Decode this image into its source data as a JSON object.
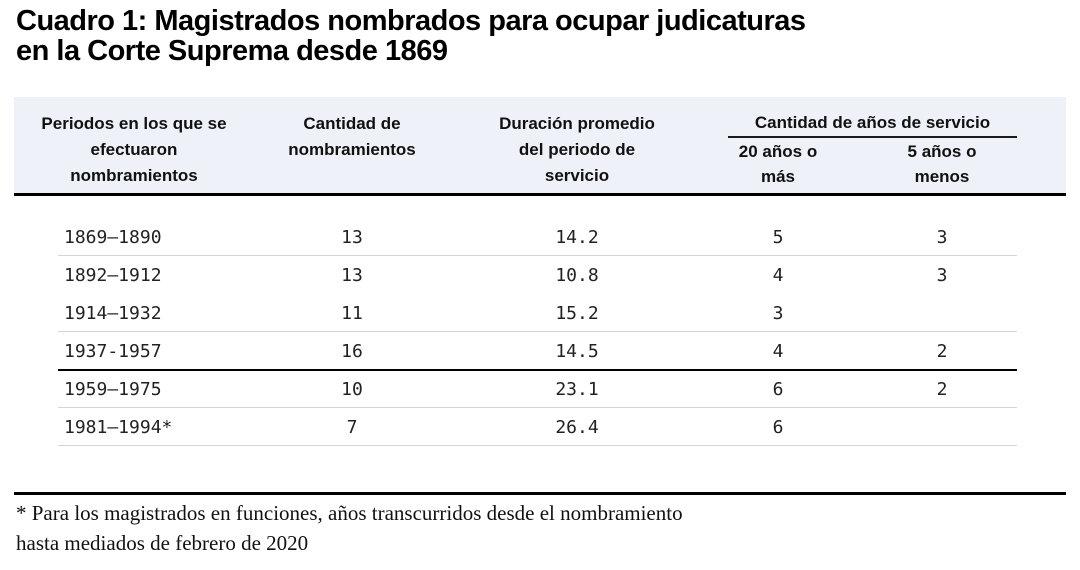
{
  "title": {
    "line1": "Cuadro 1: Magistrados nombrados para ocupar judicaturas",
    "line2": "en la Corte Suprema desde 1869"
  },
  "table": {
    "columns": {
      "periods": "Periodos en los que se efectuaron nombramientos",
      "appointments": "Cantidad de nombramientos",
      "avg_duration": "Duración promedio del periodo de servicio",
      "service_group": "Cantidad de años de servicio",
      "twenty_plus": "20 años o más",
      "five_less": "5 años o menos"
    },
    "rows": [
      {
        "period": "1869–1890",
        "appointments": "13",
        "avg": "14.2",
        "y20": "5",
        "y5": "3",
        "divider": "thin"
      },
      {
        "period": "1892–1912",
        "appointments": "13",
        "avg": "10.8",
        "y20": "4",
        "y5": "3",
        "divider": "none"
      },
      {
        "period": "1914–1932",
        "appointments": "11",
        "avg": "15.2",
        "y20": "3",
        "y5": "",
        "divider": "thin"
      },
      {
        "period": "1937-1957",
        "appointments": "16",
        "avg": "14.5",
        "y20": "4",
        "y5": "2",
        "divider": "thick"
      },
      {
        "period": "1959–1975",
        "appointments": "10",
        "avg": "23.1",
        "y20": "6",
        "y5": "2",
        "divider": "thin"
      },
      {
        "period": "1981–1994*",
        "appointments": "7",
        "avg": "26.4",
        "y20": "6",
        "y5": "",
        "divider": "thin"
      }
    ]
  },
  "footnote": {
    "line1": "* Para los magistrados en funciones, años transcurridos desde el nombramiento",
    "line2": "hasta mediados de febrero de 2020"
  },
  "colors": {
    "header_bg": "#eef1f7",
    "rule_heavy": "#000000",
    "rule_thin": "#d5d5d5",
    "text": "#1a1a1a"
  },
  "chart_data": {
    "type": "table",
    "title": "Cuadro 1: Magistrados nombrados para ocupar judicaturas en la Corte Suprema desde 1869",
    "columns": [
      "Periodos en los que se efectuaron nombramientos",
      "Cantidad de nombramientos",
      "Duración promedio del periodo de servicio",
      "Cantidad de años de servicio — 20 años o más",
      "Cantidad de años de servicio — 5 años o menos"
    ],
    "rows": [
      [
        "1869–1890",
        13,
        14.2,
        5,
        3
      ],
      [
        "1892–1912",
        13,
        10.8,
        4,
        3
      ],
      [
        "1914–1932",
        11,
        15.2,
        3,
        null
      ],
      [
        "1937-1957",
        16,
        14.5,
        4,
        2
      ],
      [
        "1959–1975",
        10,
        23.1,
        6,
        2
      ],
      [
        "1981–1994*",
        7,
        26.4,
        6,
        null
      ]
    ],
    "footnote": "* Para los magistrados en funciones, años transcurridos desde el nombramiento hasta mediados de febrero de 2020"
  }
}
